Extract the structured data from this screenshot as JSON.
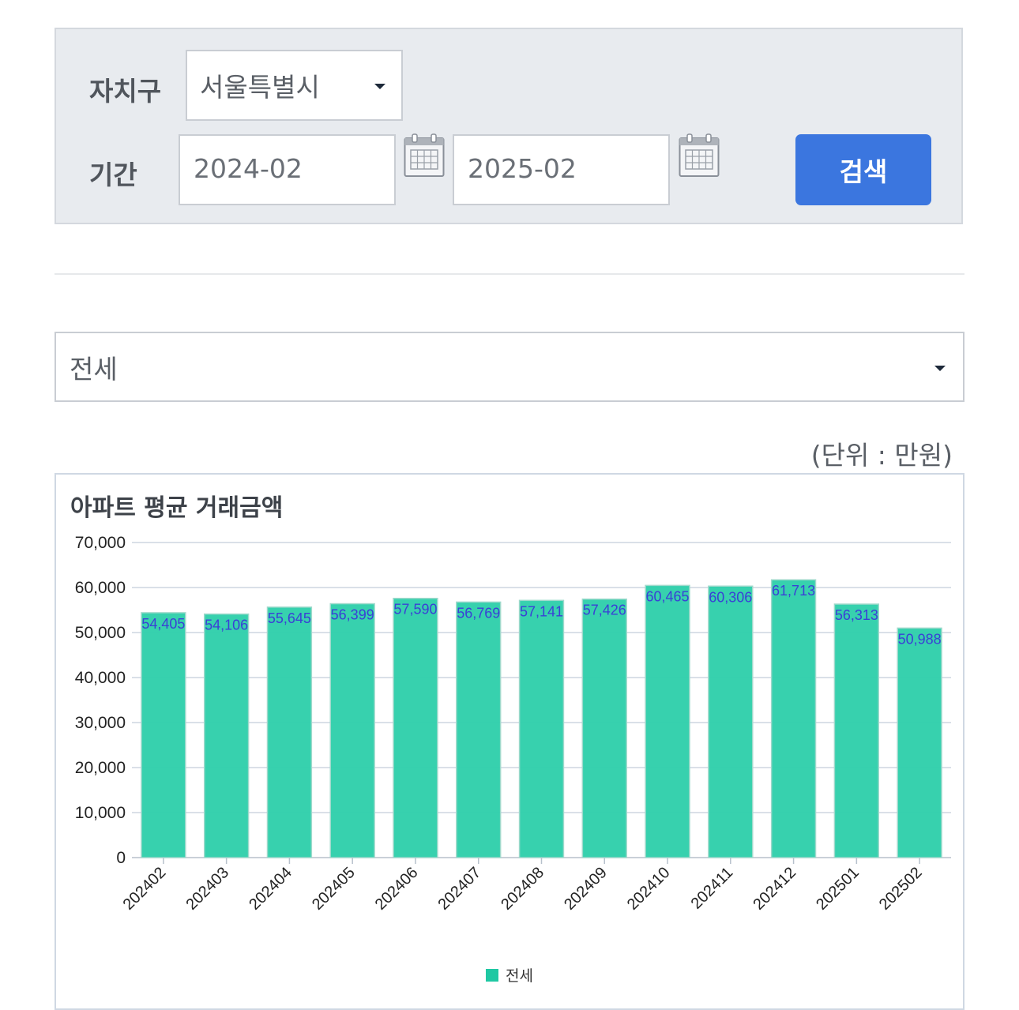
{
  "filter": {
    "district_label": "자치구",
    "district_value": "서울특별시",
    "period_label": "기간",
    "start_date": "2024-02",
    "end_date": "2025-02",
    "search_label": "검색"
  },
  "type_select": {
    "value": "전세"
  },
  "unit_label": "(단위 : 만원)",
  "colors": {
    "bar": "#2ccfaa",
    "bar_stroke": "#9ed9cb",
    "data_label": "#3a3fd6",
    "button": "#3b76df"
  },
  "chart_data": {
    "type": "bar",
    "title": "아파트 평균 거래금액",
    "categories": [
      "202402",
      "202403",
      "202404",
      "202405",
      "202406",
      "202407",
      "202408",
      "202409",
      "202410",
      "202411",
      "202412",
      "202501",
      "202502"
    ],
    "series": [
      {
        "name": "전세",
        "values": [
          54405,
          54106,
          55645,
          56399,
          57590,
          56769,
          57141,
          57426,
          60465,
          60306,
          61713,
          56313,
          50988
        ]
      }
    ],
    "data_labels": [
      "54,405",
      "54,106",
      "55,645",
      "56,399",
      "57,590",
      "56,769",
      "57,141",
      "57,426",
      "60,465",
      "60,306",
      "61,713",
      "56,313",
      "50,988"
    ],
    "y_ticks": [
      "0",
      "10,000",
      "20,000",
      "30,000",
      "40,000",
      "50,000",
      "60,000",
      "70,000"
    ],
    "ylim": [
      0,
      70000
    ],
    "grid": true,
    "legend_position": "bottom"
  }
}
